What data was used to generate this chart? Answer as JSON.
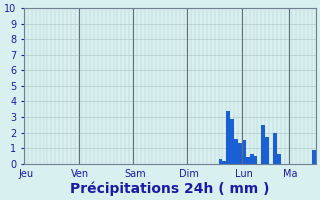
{
  "title": "",
  "xlabel": "Précipitations 24h ( mm )",
  "ylabel": "",
  "ylim": [
    0,
    10
  ],
  "yticks": [
    0,
    1,
    2,
    3,
    4,
    5,
    6,
    7,
    8,
    9,
    10
  ],
  "background_color": "#d8f0f0",
  "plot_bg_color": "#d8f0f0",
  "grid_color": "#b0c8c8",
  "bar_color": "#1a5fd4",
  "day_labels": [
    "Jeu",
    "Ven",
    "Sam",
    "Dim",
    "Lun",
    "Ma"
  ],
  "day_positions": [
    0,
    14,
    28,
    42,
    56,
    68
  ],
  "n_bars": 75,
  "bar_values": [
    0,
    0,
    0,
    0,
    0,
    0,
    0,
    0,
    0,
    0,
    0,
    0,
    0,
    0,
    0,
    0,
    0,
    0,
    0,
    0,
    0,
    0,
    0,
    0,
    0,
    0,
    0,
    0,
    0,
    0,
    0,
    0,
    0,
    0,
    0,
    0,
    0,
    0,
    0,
    0,
    0,
    0,
    0,
    0,
    0,
    0,
    0,
    0,
    0,
    0,
    0.3,
    0.2,
    3.4,
    2.9,
    1.6,
    1.3,
    1.5,
    0.4,
    0.6,
    0.5,
    0,
    2.5,
    1.7,
    0,
    2.0,
    0.6,
    0,
    0,
    0,
    0,
    0,
    0,
    0,
    0,
    0.9
  ],
  "xlabel_fontsize": 10,
  "tick_fontsize": 7,
  "vline_color": "#607080"
}
